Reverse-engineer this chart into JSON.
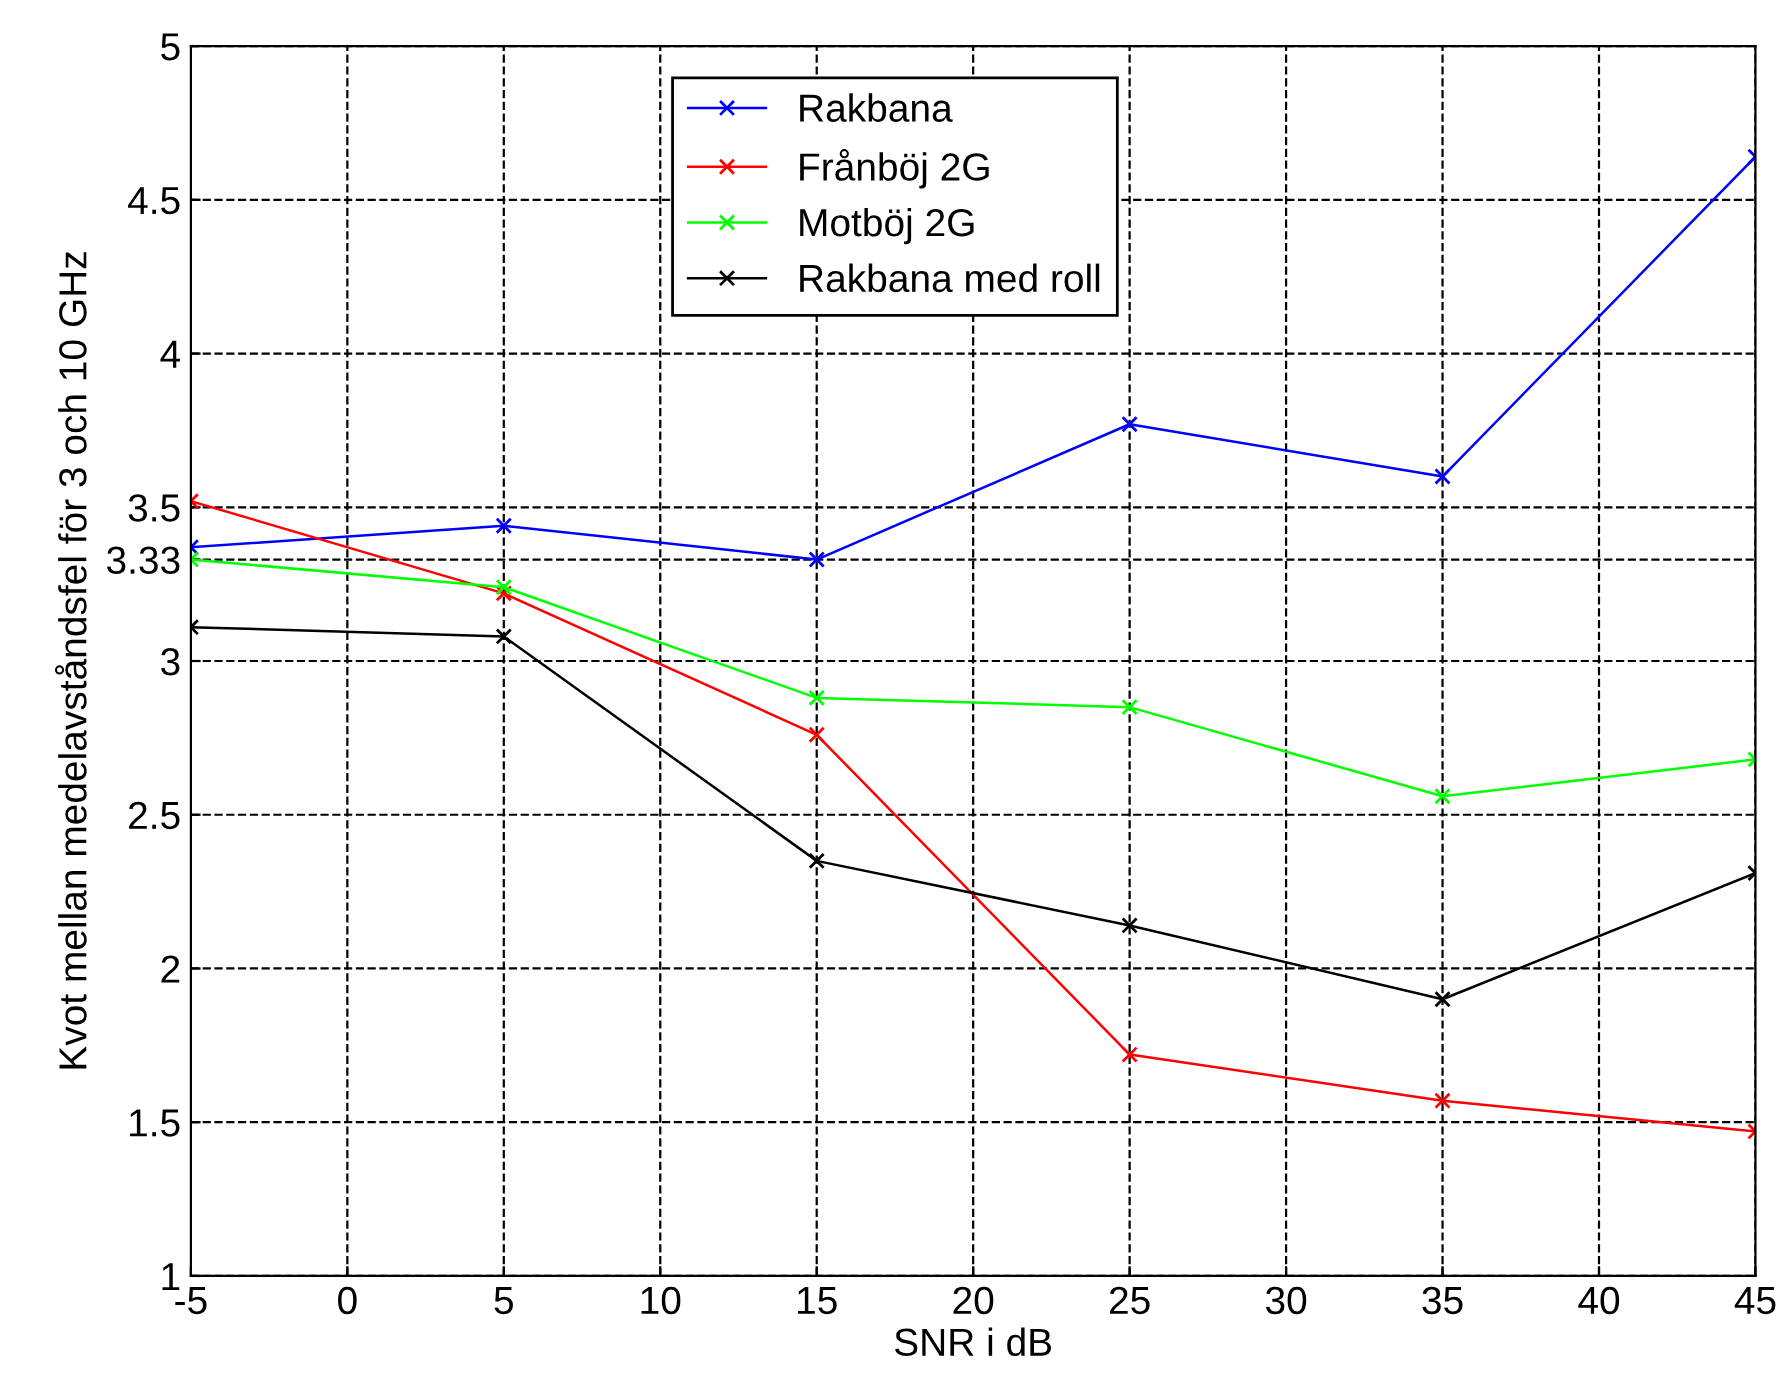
{
  "chart_data": {
    "type": "line",
    "xlabel": "SNR i dB",
    "ylabel": "Kvot mellan medelavståndsfel för 3 och 10 GHz",
    "x": [
      -5,
      5,
      15,
      25,
      35,
      45
    ],
    "series": [
      {
        "name": "Rakbana",
        "color": "#0000ff",
        "values": [
          3.37,
          3.44,
          3.33,
          3.77,
          3.6,
          4.64
        ]
      },
      {
        "name": "Frånböj 2G",
        "color": "#ff0000",
        "values": [
          3.52,
          3.22,
          2.76,
          1.72,
          1.57,
          1.47
        ]
      },
      {
        "name": "Motböj 2G",
        "color": "#00ff00",
        "values": [
          3.33,
          3.24,
          2.88,
          2.85,
          2.56,
          2.68
        ]
      },
      {
        "name": "Rakbana med roll",
        "color": "#000000",
        "values": [
          3.11,
          3.08,
          2.35,
          2.14,
          1.9,
          2.31
        ]
      }
    ],
    "xlim": [
      -5,
      45
    ],
    "xticks": [
      -5,
      0,
      5,
      10,
      15,
      20,
      25,
      30,
      35,
      40,
      45
    ],
    "ylim": [
      1,
      5
    ],
    "yticks": [
      1,
      1.5,
      2,
      2.5,
      3,
      3.33,
      3.5,
      4,
      4.5,
      5
    ],
    "grid": true,
    "legend": "top",
    "marker": "cross",
    "line_style": "solid"
  }
}
